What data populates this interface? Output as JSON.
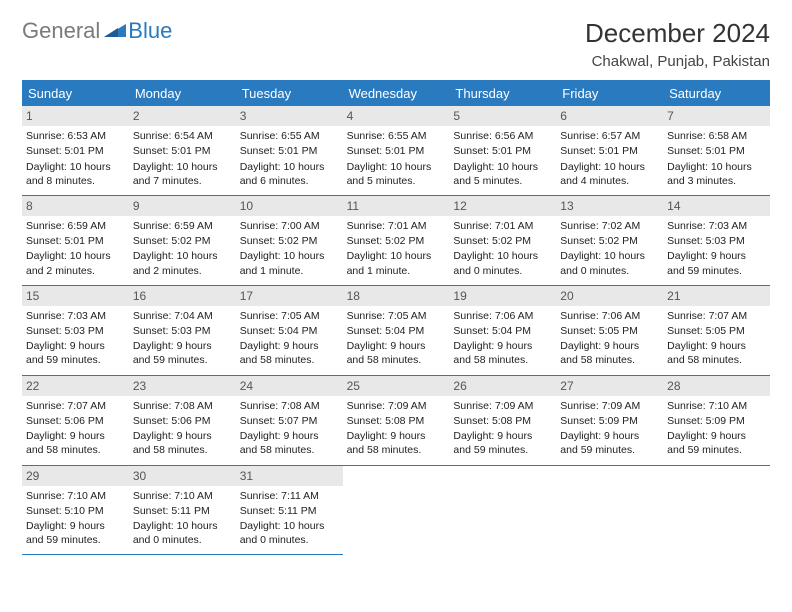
{
  "logo": {
    "text1": "General",
    "text2": "Blue"
  },
  "title": "December 2024",
  "location": "Chakwal, Punjab, Pakistan",
  "colors": {
    "brand_blue": "#2a7ac0",
    "header_bg": "#2a7ac0",
    "date_bg": "#e8e8e8",
    "text": "#222222",
    "logo_gray": "#7a7a7a"
  },
  "day_names": [
    "Sunday",
    "Monday",
    "Tuesday",
    "Wednesday",
    "Thursday",
    "Friday",
    "Saturday"
  ],
  "days": [
    {
      "n": "1",
      "sr": "6:53 AM",
      "ss": "5:01 PM",
      "dl": "10 hours and 8 minutes."
    },
    {
      "n": "2",
      "sr": "6:54 AM",
      "ss": "5:01 PM",
      "dl": "10 hours and 7 minutes."
    },
    {
      "n": "3",
      "sr": "6:55 AM",
      "ss": "5:01 PM",
      "dl": "10 hours and 6 minutes."
    },
    {
      "n": "4",
      "sr": "6:55 AM",
      "ss": "5:01 PM",
      "dl": "10 hours and 5 minutes."
    },
    {
      "n": "5",
      "sr": "6:56 AM",
      "ss": "5:01 PM",
      "dl": "10 hours and 5 minutes."
    },
    {
      "n": "6",
      "sr": "6:57 AM",
      "ss": "5:01 PM",
      "dl": "10 hours and 4 minutes."
    },
    {
      "n": "7",
      "sr": "6:58 AM",
      "ss": "5:01 PM",
      "dl": "10 hours and 3 minutes."
    },
    {
      "n": "8",
      "sr": "6:59 AM",
      "ss": "5:01 PM",
      "dl": "10 hours and 2 minutes."
    },
    {
      "n": "9",
      "sr": "6:59 AM",
      "ss": "5:02 PM",
      "dl": "10 hours and 2 minutes."
    },
    {
      "n": "10",
      "sr": "7:00 AM",
      "ss": "5:02 PM",
      "dl": "10 hours and 1 minute."
    },
    {
      "n": "11",
      "sr": "7:01 AM",
      "ss": "5:02 PM",
      "dl": "10 hours and 1 minute."
    },
    {
      "n": "12",
      "sr": "7:01 AM",
      "ss": "5:02 PM",
      "dl": "10 hours and 0 minutes."
    },
    {
      "n": "13",
      "sr": "7:02 AM",
      "ss": "5:02 PM",
      "dl": "10 hours and 0 minutes."
    },
    {
      "n": "14",
      "sr": "7:03 AM",
      "ss": "5:03 PM",
      "dl": "9 hours and 59 minutes."
    },
    {
      "n": "15",
      "sr": "7:03 AM",
      "ss": "5:03 PM",
      "dl": "9 hours and 59 minutes."
    },
    {
      "n": "16",
      "sr": "7:04 AM",
      "ss": "5:03 PM",
      "dl": "9 hours and 59 minutes."
    },
    {
      "n": "17",
      "sr": "7:05 AM",
      "ss": "5:04 PM",
      "dl": "9 hours and 58 minutes."
    },
    {
      "n": "18",
      "sr": "7:05 AM",
      "ss": "5:04 PM",
      "dl": "9 hours and 58 minutes."
    },
    {
      "n": "19",
      "sr": "7:06 AM",
      "ss": "5:04 PM",
      "dl": "9 hours and 58 minutes."
    },
    {
      "n": "20",
      "sr": "7:06 AM",
      "ss": "5:05 PM",
      "dl": "9 hours and 58 minutes."
    },
    {
      "n": "21",
      "sr": "7:07 AM",
      "ss": "5:05 PM",
      "dl": "9 hours and 58 minutes."
    },
    {
      "n": "22",
      "sr": "7:07 AM",
      "ss": "5:06 PM",
      "dl": "9 hours and 58 minutes."
    },
    {
      "n": "23",
      "sr": "7:08 AM",
      "ss": "5:06 PM",
      "dl": "9 hours and 58 minutes."
    },
    {
      "n": "24",
      "sr": "7:08 AM",
      "ss": "5:07 PM",
      "dl": "9 hours and 58 minutes."
    },
    {
      "n": "25",
      "sr": "7:09 AM",
      "ss": "5:08 PM",
      "dl": "9 hours and 58 minutes."
    },
    {
      "n": "26",
      "sr": "7:09 AM",
      "ss": "5:08 PM",
      "dl": "9 hours and 59 minutes."
    },
    {
      "n": "27",
      "sr": "7:09 AM",
      "ss": "5:09 PM",
      "dl": "9 hours and 59 minutes."
    },
    {
      "n": "28",
      "sr": "7:10 AM",
      "ss": "5:09 PM",
      "dl": "9 hours and 59 minutes."
    },
    {
      "n": "29",
      "sr": "7:10 AM",
      "ss": "5:10 PM",
      "dl": "9 hours and 59 minutes."
    },
    {
      "n": "30",
      "sr": "7:10 AM",
      "ss": "5:11 PM",
      "dl": "10 hours and 0 minutes."
    },
    {
      "n": "31",
      "sr": "7:11 AM",
      "ss": "5:11 PM",
      "dl": "10 hours and 0 minutes."
    }
  ],
  "labels": {
    "sunrise": "Sunrise: ",
    "sunset": "Sunset: ",
    "daylight": "Daylight: "
  },
  "layout": {
    "cols": 7,
    "start_offset": 0,
    "total_cells": 35
  }
}
